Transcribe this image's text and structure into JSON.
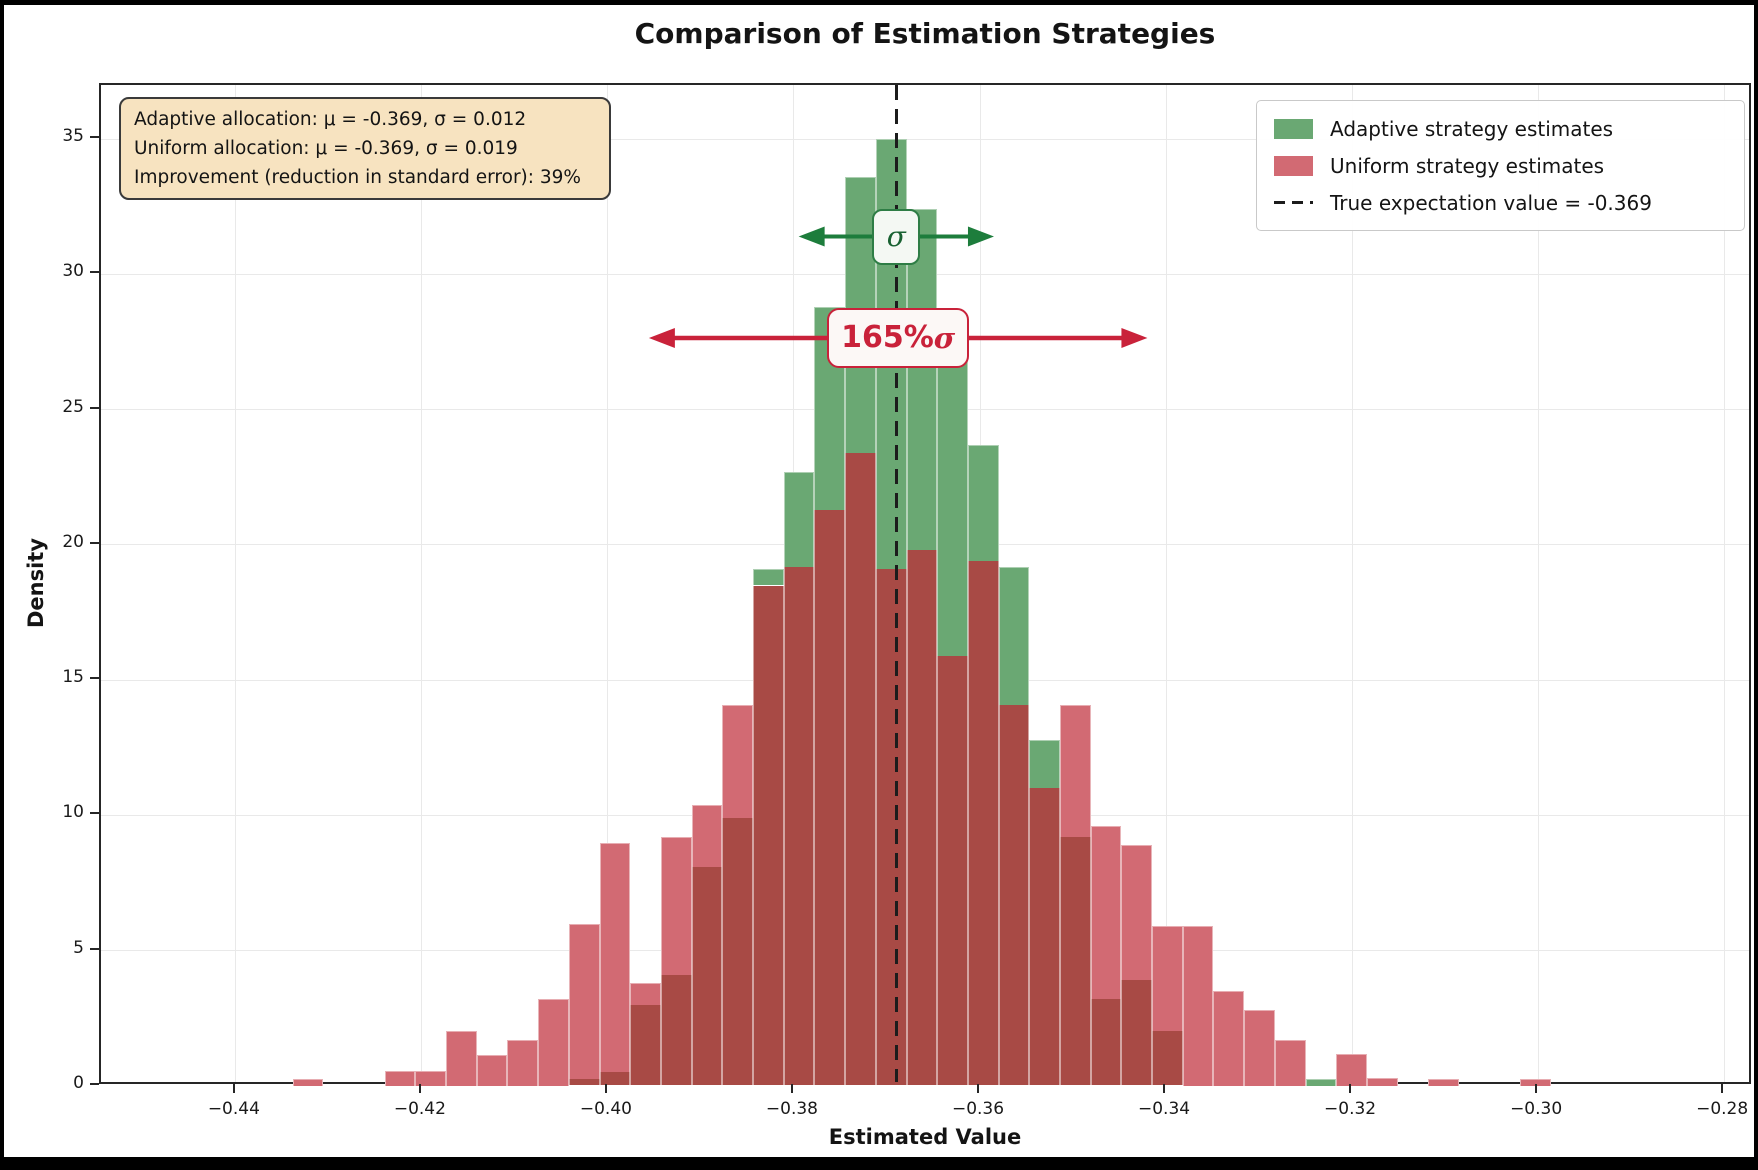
{
  "chart_data": {
    "type": "bar",
    "subtype": "overlaid-histograms",
    "title": "Comparison of Estimation Strategies",
    "xlabel": "Estimated Value",
    "ylabel": "Density",
    "xlim": [
      -0.4545,
      -0.2769
    ],
    "ylim": [
      0,
      37
    ],
    "grid": true,
    "bin_start": -0.4339,
    "bin_width": 0.0033,
    "series": [
      {
        "name": "Adaptive strategy estimates",
        "color": "#6aa873",
        "values": [
          0,
          0,
          0,
          0,
          0,
          0,
          0,
          0,
          0,
          0.26,
          0.53,
          3.0,
          4.1,
          8.1,
          9.9,
          19.1,
          22.7,
          28.8,
          33.6,
          35.0,
          32.4,
          27.6,
          23.7,
          19.2,
          12.8,
          9.2,
          3.2,
          3.9,
          2.05,
          0,
          0,
          0,
          0,
          0.26,
          0,
          0,
          0,
          0,
          0,
          0,
          0,
          0
        ]
      },
      {
        "name": "Uniform strategy estimates",
        "color": "#d26a73",
        "values": [
          0.26,
          0,
          0,
          0.55,
          0.55,
          2.05,
          1.15,
          1.7,
          3.2,
          6.0,
          9.0,
          3.8,
          9.2,
          10.4,
          14.1,
          18.5,
          19.2,
          21.3,
          23.4,
          19.1,
          19.8,
          15.9,
          19.4,
          14.1,
          11.0,
          14.1,
          9.6,
          8.9,
          5.9,
          5.9,
          3.5,
          2.8,
          1.7,
          0,
          1.2,
          0.3,
          0,
          0.26,
          0,
          0,
          0.26,
          0
        ]
      }
    ],
    "overlap_color": "#a84a45",
    "x_ticks": [
      {
        "v": -0.44,
        "label": "−0.44"
      },
      {
        "v": -0.42,
        "label": "−0.42"
      },
      {
        "v": -0.4,
        "label": "−0.40"
      },
      {
        "v": -0.38,
        "label": "−0.38"
      },
      {
        "v": -0.36,
        "label": "−0.36"
      },
      {
        "v": -0.34,
        "label": "−0.34"
      },
      {
        "v": -0.32,
        "label": "−0.32"
      },
      {
        "v": -0.3,
        "label": "−0.30"
      },
      {
        "v": -0.28,
        "label": "−0.28"
      }
    ],
    "y_ticks": [
      {
        "v": 0,
        "label": "0"
      },
      {
        "v": 5,
        "label": "5"
      },
      {
        "v": 10,
        "label": "10"
      },
      {
        "v": 15,
        "label": "15"
      },
      {
        "v": 20,
        "label": "20"
      },
      {
        "v": 25,
        "label": "25"
      },
      {
        "v": 30,
        "label": "30"
      },
      {
        "v": 35,
        "label": "35"
      }
    ],
    "true_line": {
      "x": -0.369,
      "color": "#1c1c1c"
    },
    "annotations": {
      "sigma": {
        "prefix": "",
        "sigma": "σ",
        "x_from": -0.3795,
        "x_to": -0.3585,
        "y": 31.4,
        "center_x": -0.369,
        "color": "#1d7d3c"
      },
      "sigma165": {
        "prefix": "165%",
        "sigma": "σ",
        "x_from": -0.3956,
        "x_to": -0.342,
        "y": 27.65,
        "center_x": -0.3688,
        "color": "#c9223a"
      }
    },
    "legend": [
      {
        "type": "patch",
        "color": "#6aa873",
        "label": "Adaptive strategy estimates"
      },
      {
        "type": "patch",
        "color": "#d26a73",
        "label": "Uniform strategy estimates"
      },
      {
        "type": "dashed-line",
        "color": "#1c1c1c",
        "label": "True expectation value = -0.369"
      }
    ],
    "stats_box": {
      "bg": "#f7e3c0",
      "border": "#3a3a3a",
      "lines": [
        "Adaptive allocation: μ = -0.369, σ = 0.012",
        "Uniform allocation: μ = -0.369, σ = 0.019",
        "Improvement (reduction in standard error): 39%"
      ]
    }
  }
}
